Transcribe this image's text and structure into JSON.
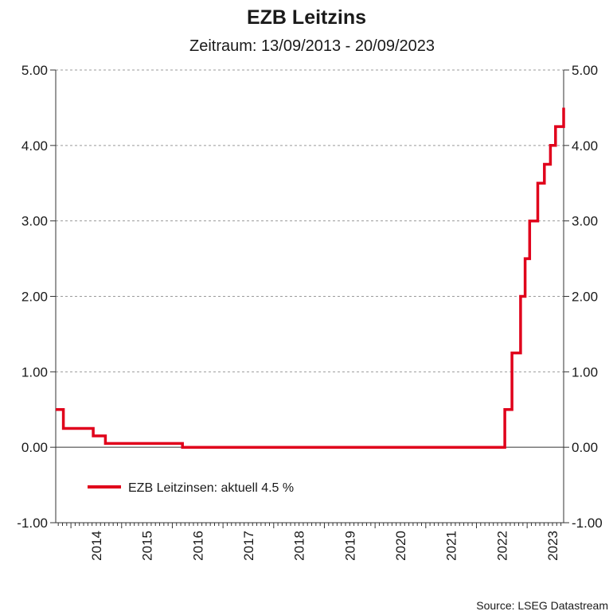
{
  "chart_data": {
    "type": "line",
    "title": "EZB Leitzins",
    "subtitle": "Zeitraum: 13/09/2013 - 20/09/2023",
    "source": "Source: LSEG Datastream",
    "ylim": [
      -1.0,
      5.0
    ],
    "yticks": [
      "5.00",
      "4.00",
      "3.00",
      "2.00",
      "1.00",
      "0.00",
      "-1.00"
    ],
    "ytick_values": [
      5,
      4,
      3,
      2,
      1,
      0,
      -1
    ],
    "xlim": [
      2013.7,
      2023.72
    ],
    "xtick_labels": [
      "2014",
      "2015",
      "2016",
      "2017",
      "2018",
      "2019",
      "2020",
      "2021",
      "2022",
      "2023"
    ],
    "xtick_values": [
      2014,
      2015,
      2016,
      2017,
      2018,
      2019,
      2020,
      2021,
      2022,
      2023
    ],
    "grid": true,
    "legend_position": "lower-left",
    "series": [
      {
        "name": "EZB Leitzinsen: aktuell 4.5 %",
        "color": "#e0001b",
        "step": true,
        "x": [
          2013.7,
          2013.85,
          2014.44,
          2014.68,
          2015.93,
          2016.2,
          2022.56,
          2022.7,
          2022.87,
          2022.96,
          2023.05,
          2023.21,
          2023.34,
          2023.46,
          2023.56,
          2023.72
        ],
        "y": [
          0.5,
          0.25,
          0.15,
          0.05,
          0.05,
          0.0,
          0.5,
          1.25,
          2.0,
          2.5,
          3.0,
          3.5,
          3.75,
          4.0,
          4.25,
          4.5
        ]
      }
    ]
  }
}
